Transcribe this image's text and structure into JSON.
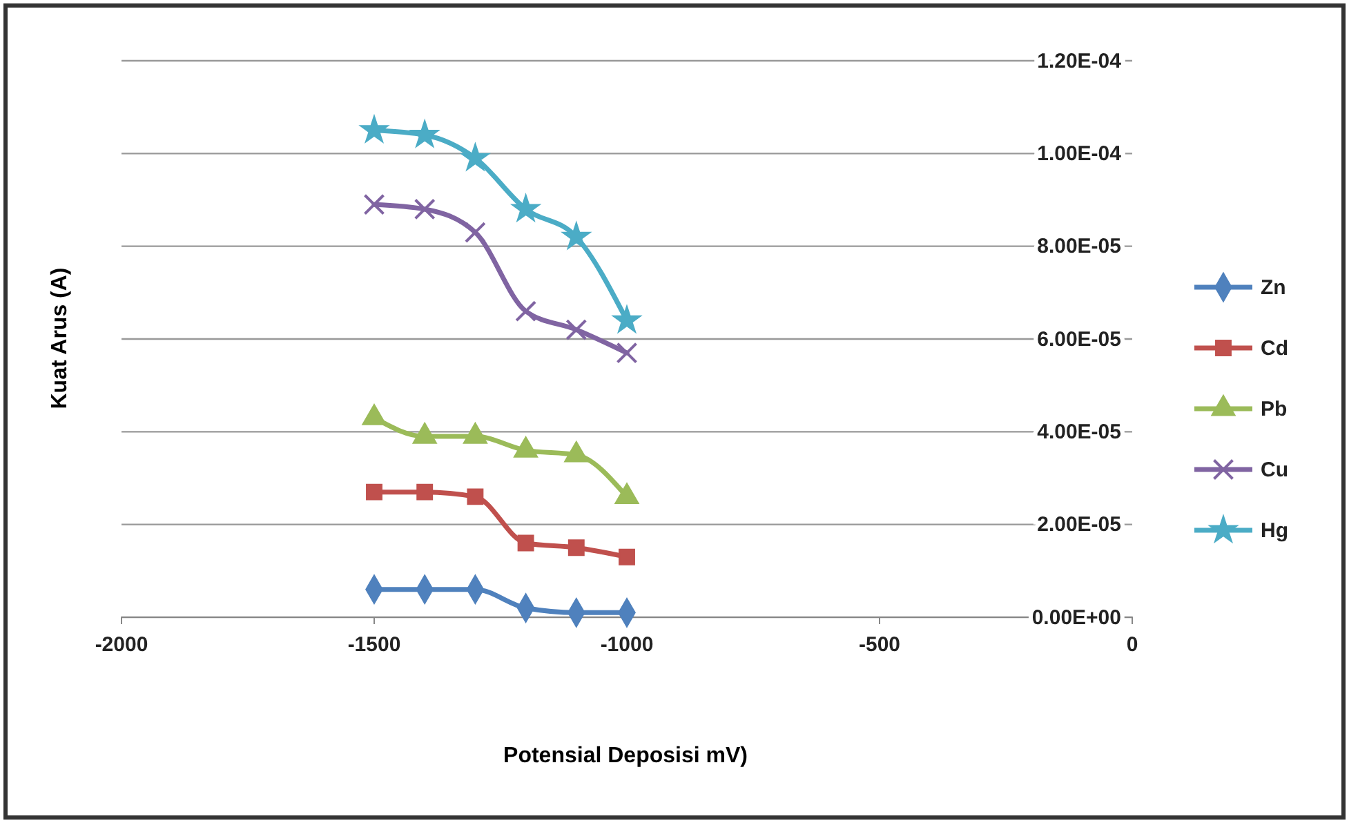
{
  "chart_data": {
    "type": "line",
    "xlabel": "Potensial Deposisi mV)",
    "ylabel": "Kuat Arus (A)",
    "x": [
      -1500,
      -1400,
      -1300,
      -1200,
      -1100,
      -1000
    ],
    "series": [
      {
        "name": "Zn",
        "color": "#4f81bd",
        "marker": "diamond",
        "values": [
          6e-06,
          6e-06,
          6e-06,
          2e-06,
          1e-06,
          1e-06
        ]
      },
      {
        "name": "Cd",
        "color": "#c0504d",
        "marker": "square",
        "values": [
          2.7e-05,
          2.7e-05,
          2.6e-05,
          1.6e-05,
          1.5e-05,
          1.3e-05
        ]
      },
      {
        "name": "Pb",
        "color": "#9bbb59",
        "marker": "triangle",
        "values": [
          4.3e-05,
          3.9e-05,
          3.9e-05,
          3.6e-05,
          3.5e-05,
          2.6e-05
        ]
      },
      {
        "name": "Cu",
        "color": "#8064a2",
        "marker": "cross",
        "values": [
          8.9e-05,
          8.8e-05,
          8.3e-05,
          6.6e-05,
          6.2e-05,
          5.7e-05
        ]
      },
      {
        "name": "Hg",
        "color": "#4bacc6",
        "marker": "star",
        "values": [
          0.000105,
          0.000104,
          9.9e-05,
          8.8e-05,
          8.2e-05,
          6.4e-05
        ]
      }
    ],
    "xlim": [
      -2000,
      0
    ],
    "xticks": [
      -2000,
      -1500,
      -1000,
      -500,
      0
    ],
    "ylim": [
      0,
      0.00012
    ],
    "yticks": [
      {
        "value": 0,
        "label": "0.00E+00"
      },
      {
        "value": 2e-05,
        "label": "2.00E-05"
      },
      {
        "value": 4e-05,
        "label": "4.00E-05"
      },
      {
        "value": 6e-05,
        "label": "6.00E-05"
      },
      {
        "value": 8e-05,
        "label": "8.00E-05"
      },
      {
        "value": 0.0001,
        "label": "1.00E-04"
      },
      {
        "value": 0.00012,
        "label": "1.20E-04"
      }
    ],
    "grid": "y",
    "legend": "right"
  }
}
